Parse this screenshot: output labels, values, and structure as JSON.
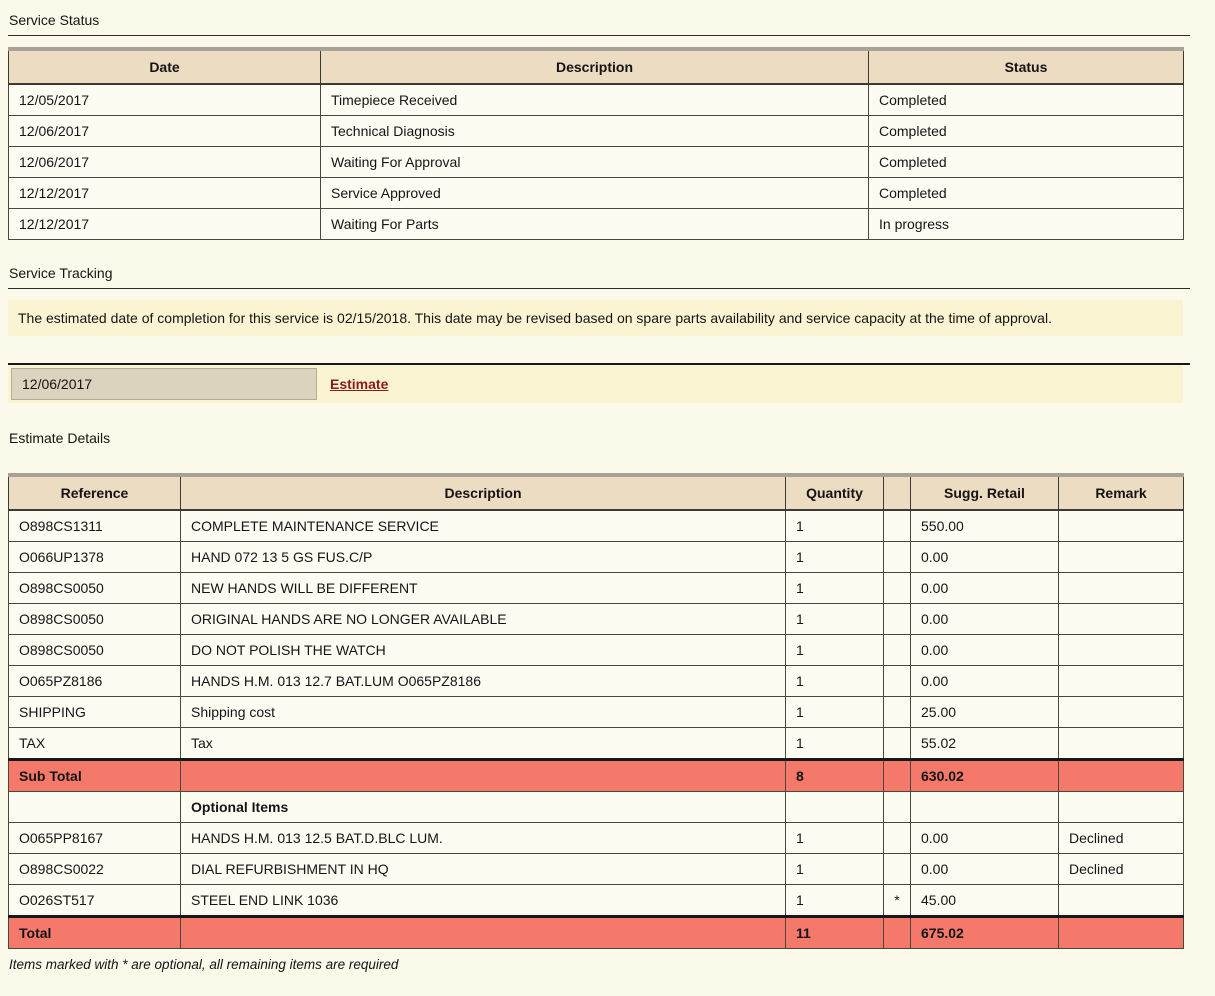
{
  "colors": {
    "page_bg": "#fbf9ea",
    "cell_bg": "#fdfcf3",
    "header_bg": "#ecdcc2",
    "highlight_row": "#f5796a",
    "tracking_bg": "#fbf4d3",
    "date_cell_bg": "#dcd3bf",
    "link_color": "#8b1a1a"
  },
  "service_status": {
    "title": "Service Status",
    "columns": [
      "Date",
      "Description",
      "Status"
    ],
    "rows": [
      {
        "date": "12/05/2017",
        "description": "Timepiece Received",
        "status": "Completed"
      },
      {
        "date": "12/06/2017",
        "description": "Technical Diagnosis",
        "status": "Completed"
      },
      {
        "date": "12/06/2017",
        "description": "Waiting For Approval",
        "status": "Completed"
      },
      {
        "date": "12/12/2017",
        "description": "Service Approved",
        "status": "Completed"
      },
      {
        "date": "12/12/2017",
        "description": "Waiting For Parts",
        "status": "In progress"
      }
    ]
  },
  "service_tracking": {
    "title": "Service Tracking",
    "message": "The estimated date of completion for this service is 02/15/2018. This date may be revised based on spare parts availability and service capacity at the time of approval.",
    "document_date": "12/06/2017",
    "document_link": "Estimate"
  },
  "estimate_details": {
    "title": "Estimate Details",
    "columns": [
      "Reference",
      "Description",
      "Quantity",
      "",
      "Sugg. Retail",
      "Remark"
    ],
    "rows": [
      {
        "type": "item",
        "reference": "O898CS1311",
        "description": "COMPLETE MAINTENANCE SERVICE",
        "quantity": "1",
        "star": "",
        "sugg_retail": "550.00",
        "remark": ""
      },
      {
        "type": "item",
        "reference": "O066UP1378",
        "description": "HAND 072 13 5 GS FUS.C/P",
        "quantity": "1",
        "star": "",
        "sugg_retail": "0.00",
        "remark": ""
      },
      {
        "type": "item",
        "reference": "O898CS0050",
        "description": "NEW HANDS WILL BE DIFFERENT",
        "quantity": "1",
        "star": "",
        "sugg_retail": "0.00",
        "remark": ""
      },
      {
        "type": "item",
        "reference": "O898CS0050",
        "description": "ORIGINAL HANDS ARE NO LONGER AVAILABLE",
        "quantity": "1",
        "star": "",
        "sugg_retail": "0.00",
        "remark": ""
      },
      {
        "type": "item",
        "reference": "O898CS0050",
        "description": "DO NOT POLISH THE WATCH",
        "quantity": "1",
        "star": "",
        "sugg_retail": "0.00",
        "remark": ""
      },
      {
        "type": "item",
        "reference": "O065PZ8186",
        "description": "HANDS H.M. 013 12.7 BAT.LUM O065PZ8186",
        "quantity": "1",
        "star": "",
        "sugg_retail": "0.00",
        "remark": ""
      },
      {
        "type": "item",
        "reference": "SHIPPING",
        "description": "Shipping cost",
        "quantity": "1",
        "star": "",
        "sugg_retail": "25.00",
        "remark": ""
      },
      {
        "type": "item",
        "reference": "TAX",
        "description": "Tax",
        "quantity": "1",
        "star": "",
        "sugg_retail": "55.02",
        "remark": ""
      },
      {
        "type": "subtotal",
        "reference": "Sub Total",
        "description": "",
        "quantity": "8",
        "star": "",
        "sugg_retail": "630.02",
        "remark": ""
      },
      {
        "type": "section",
        "reference": "",
        "description": "Optional Items",
        "quantity": "",
        "star": "",
        "sugg_retail": "",
        "remark": ""
      },
      {
        "type": "item",
        "reference": "O065PP8167",
        "description": "HANDS H.M. 013 12.5 BAT.D.BLC LUM.",
        "quantity": "1",
        "star": "",
        "sugg_retail": "0.00",
        "remark": "Declined"
      },
      {
        "type": "item",
        "reference": "O898CS0022",
        "description": "DIAL REFURBISHMENT IN HQ",
        "quantity": "1",
        "star": "",
        "sugg_retail": "0.00",
        "remark": "Declined"
      },
      {
        "type": "item",
        "reference": "O026ST517",
        "description": "STEEL END LINK 1036",
        "quantity": "1",
        "star": "*",
        "sugg_retail": "45.00",
        "remark": ""
      },
      {
        "type": "total",
        "reference": "Total",
        "description": "",
        "quantity": "11",
        "star": "",
        "sugg_retail": "675.02",
        "remark": ""
      }
    ],
    "footnote": "Items marked with * are optional, all remaining items are required"
  }
}
